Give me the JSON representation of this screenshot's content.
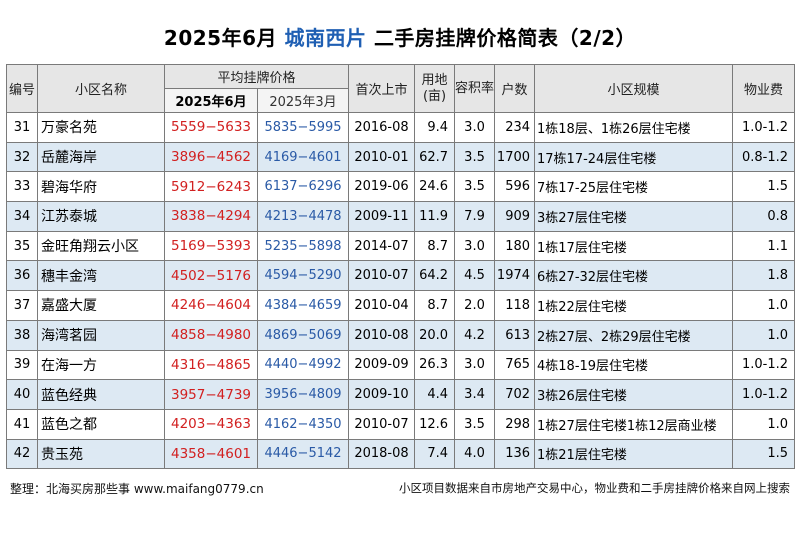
{
  "title": {
    "prefix": "2025年6月",
    "district": "城南西片",
    "suffix": "二手房挂牌价格简表（2/2）"
  },
  "headers": {
    "no": "编号",
    "name": "小区名称",
    "avg_price": "平均挂牌价格",
    "jun": "2025年6月",
    "mar": "2025年3月",
    "first_listed": "首次上市",
    "land": "用地(亩)",
    "far": "容积率",
    "households": "户数",
    "scale": "小区规模",
    "fee": "物业费"
  },
  "rows": [
    {
      "no": "31",
      "name": "万豪名苑",
      "jun": "5559−5633",
      "mar": "5835−5995",
      "date": "2016-08",
      "land": "9.4",
      "far": "3.0",
      "hh": "234",
      "scale": "1栋18层、1栋26层住宅楼",
      "fee": "1.0-1.2"
    },
    {
      "no": "32",
      "name": "岳麓海岸",
      "jun": "3896−4562",
      "mar": "4169−4601",
      "date": "2010-01",
      "land": "62.7",
      "far": "3.5",
      "hh": "1700",
      "scale": "17栋17-24层住宅楼",
      "fee": "0.8-1.2"
    },
    {
      "no": "33",
      "name": "碧海华府",
      "jun": "5912−6243",
      "mar": "6137−6296",
      "date": "2019-06",
      "land": "24.6",
      "far": "3.5",
      "hh": "596",
      "scale": "7栋17-25层住宅楼",
      "fee": "1.5"
    },
    {
      "no": "34",
      "name": "江苏泰城",
      "jun": "3838−4294",
      "mar": "4213−4478",
      "date": "2009-11",
      "land": "11.9",
      "far": "7.9",
      "hh": "909",
      "scale": "3栋27层住宅楼",
      "fee": "0.8"
    },
    {
      "no": "35",
      "name": "金旺角翔云小区",
      "jun": "5169−5393",
      "mar": "5235−5898",
      "date": "2014-07",
      "land": "8.7",
      "far": "3.0",
      "hh": "180",
      "scale": "1栋17层住宅楼",
      "fee": "1.1"
    },
    {
      "no": "36",
      "name": "穗丰金湾",
      "jun": "4502−5176",
      "mar": "4594−5290",
      "date": "2010-07",
      "land": "64.2",
      "far": "4.5",
      "hh": "1974",
      "scale": "6栋27-32层住宅楼",
      "fee": "1.8"
    },
    {
      "no": "37",
      "name": "嘉盛大厦",
      "jun": "4246−4604",
      "mar": "4384−4659",
      "date": "2010-04",
      "land": "8.7",
      "far": "2.0",
      "hh": "118",
      "scale": "1栋22层住宅楼",
      "fee": "1.0"
    },
    {
      "no": "38",
      "name": "海湾茗园",
      "jun": "4858−4980",
      "mar": "4869−5069",
      "date": "2010-08",
      "land": "20.0",
      "far": "4.2",
      "hh": "613",
      "scale": "2栋27层、2栋29层住宅楼",
      "fee": "1.0"
    },
    {
      "no": "39",
      "name": "在海一方",
      "jun": "4316−4865",
      "mar": "4440−4992",
      "date": "2009-09",
      "land": "26.3",
      "far": "3.0",
      "hh": "765",
      "scale": "4栋18-19层住宅楼",
      "fee": "1.0-1.2"
    },
    {
      "no": "40",
      "name": "蓝色经典",
      "jun": "3957−4739",
      "mar": "3956−4809",
      "date": "2009-10",
      "land": "4.4",
      "far": "3.4",
      "hh": "702",
      "scale": "3栋26层住宅楼",
      "fee": "1.0-1.2"
    },
    {
      "no": "41",
      "name": "蓝色之都",
      "jun": "4203−4363",
      "mar": "4162−4350",
      "date": "2010-07",
      "land": "12.6",
      "far": "3.5",
      "hh": "298",
      "scale": "1栋27层住宅楼1栋12层商业楼",
      "fee": "1.0"
    },
    {
      "no": "42",
      "name": "贵玉苑",
      "jun": "4358−4601",
      "mar": "4446−5142",
      "date": "2018-08",
      "land": "7.4",
      "far": "4.0",
      "hh": "136",
      "scale": "1栋21层住宅楼",
      "fee": "1.5"
    }
  ],
  "footer": {
    "left": "整理：北海买房那些事 www.maifang0779.cn",
    "right": "小区项目数据来自市房地产交易中心，物业费和二手房挂牌价格来自网上搜索"
  },
  "colors": {
    "district_title": "#1f5fb3",
    "price_jun": "#d22020",
    "price_mar": "#2a5aa6",
    "alt_row_bg": "#dde9f3",
    "header_bg": "#e6e6e6"
  }
}
